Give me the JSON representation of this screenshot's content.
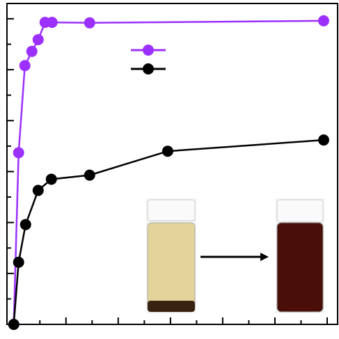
{
  "chart_data": {
    "type": "line",
    "series": [
      {
        "color": "#9b30ff",
        "x": [
          0,
          0.093,
          0.213,
          0.347,
          0.467,
          0.6,
          0.733,
          1.453,
          5.933
        ],
        "values": [
          0,
          3.37,
          5.08,
          5.36,
          5.59,
          5.93,
          5.93,
          5.92,
          5.96
        ]
      },
      {
        "color": "#000000",
        "x": [
          0,
          0.093,
          0.227,
          0.467,
          0.72,
          1.453,
          2.947,
          5.933
        ],
        "values": [
          0,
          1.22,
          1.96,
          2.63,
          2.85,
          2.93,
          3.4,
          3.62
        ]
      }
    ],
    "xlim": [
      -0.13,
      6.2
    ],
    "xticks": [
      0,
      0.5,
      1,
      1.5,
      2,
      2.5,
      3,
      3.5,
      4,
      4.5,
      5,
      5.5,
      6
    ],
    "ylim": [
      0,
      6.3
    ],
    "yticks": [
      0,
      0.5,
      1,
      1.5,
      2,
      2.5,
      3,
      3.5,
      4,
      4.5,
      5,
      5.5,
      6
    ]
  }
}
